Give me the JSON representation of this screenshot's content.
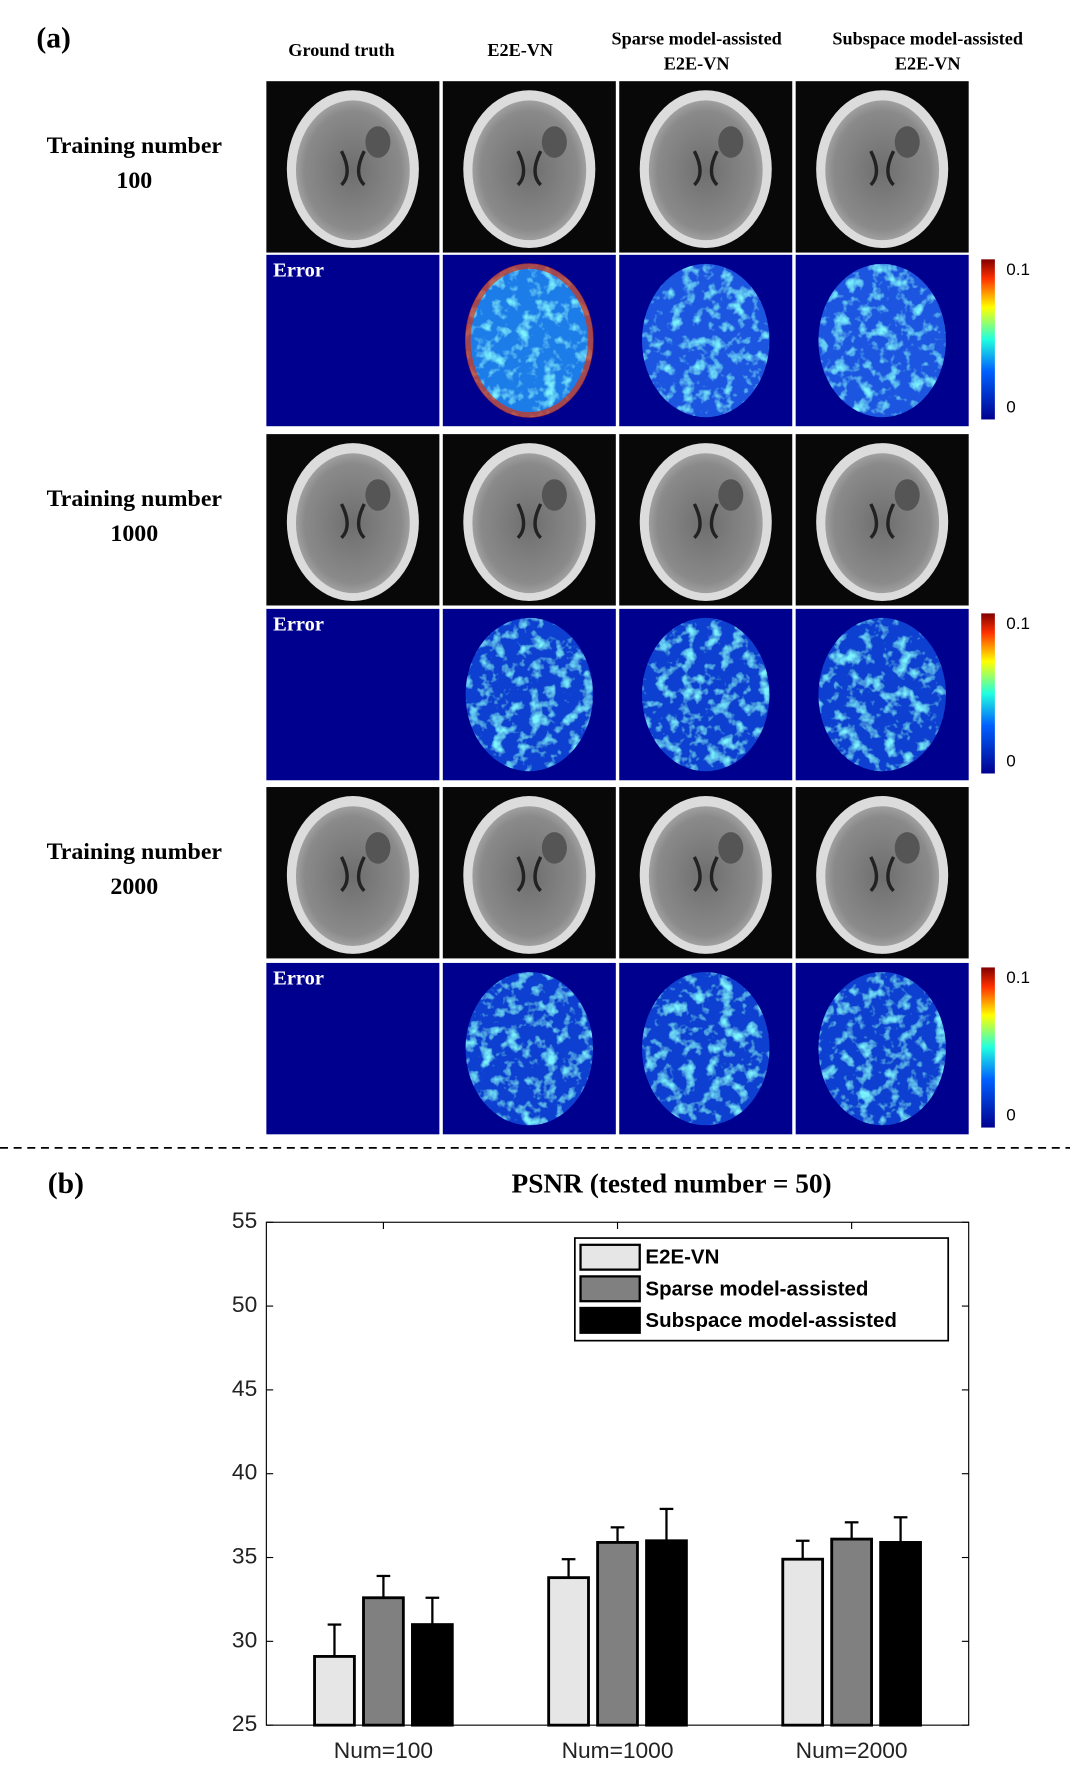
{
  "panel_a": {
    "label": "(a)",
    "column_headers": [
      [
        "Ground truth"
      ],
      [
        "E2E-VN"
      ],
      [
        "Sparse model-assisted",
        "E2E-VN"
      ],
      [
        "Subspace model-assisted",
        "E2E-VN"
      ]
    ],
    "rows": [
      {
        "label": [
          "Training number",
          "100"
        ],
        "error_label": "Error",
        "colorbar_ticks": [
          "0.1",
          "0"
        ]
      },
      {
        "label": [
          "Training number",
          "1000"
        ],
        "error_label": "Error",
        "colorbar_ticks": [
          "0.1",
          "0"
        ]
      },
      {
        "label": [
          "Training number",
          "2000"
        ],
        "error_label": "Error",
        "colorbar_ticks": [
          "0.1",
          "0"
        ]
      }
    ]
  },
  "chart_data": {
    "type": "bar",
    "panel_label": "(b)",
    "title": "PSNR (tested number = 50)",
    "categories": [
      "Num=100",
      "Num=1000",
      "Num=2000"
    ],
    "series": [
      {
        "name": "E2E-VN",
        "color": "#e6e6e6",
        "values": [
          29.1,
          33.8,
          34.9
        ],
        "errors": [
          1.9,
          1.1,
          1.1
        ]
      },
      {
        "name": "Sparse model-assisted",
        "color": "#808080",
        "values": [
          32.6,
          35.9,
          36.1
        ],
        "errors": [
          1.3,
          0.9,
          1.0
        ]
      },
      {
        "name": "Subspace model-assisted",
        "color": "#000000",
        "values": [
          31.0,
          36.0,
          35.9
        ],
        "errors": [
          1.6,
          1.9,
          1.5
        ]
      }
    ],
    "ylim": [
      25,
      55
    ],
    "yticks": [
      25,
      30,
      35,
      40,
      45,
      50,
      55
    ],
    "legend": "upper right",
    "grid": false
  }
}
